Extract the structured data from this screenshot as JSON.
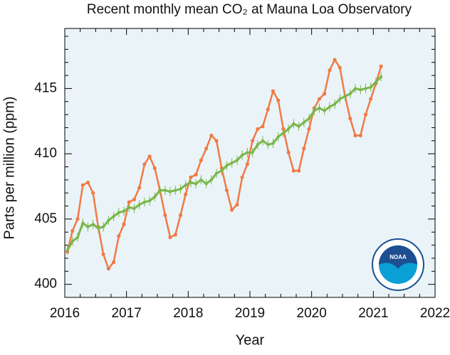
{
  "chart_data": {
    "type": "line",
    "title": "Recent monthly mean CO₂ at Mauna Loa Observatory",
    "xlabel": "Year",
    "ylabel": "Parts per million (ppm)",
    "logo_text": "NOAA",
    "background": "#eaf4f8",
    "xlim": [
      2016,
      2022
    ],
    "xticks": [
      2016,
      2017,
      2018,
      2019,
      2020,
      2021,
      2022
    ],
    "xminorticks": [
      2016.25,
      2016.5,
      2016.75,
      2017.25,
      2017.5,
      2017.75,
      2018.25,
      2018.5,
      2018.75,
      2019.25,
      2019.5,
      2019.75,
      2020.25,
      2020.5,
      2020.75,
      2021.25,
      2021.5,
      2021.75
    ],
    "ylim": [
      399,
      419.6
    ],
    "yticks": [
      400,
      405,
      410,
      415
    ],
    "yminorticks": [
      401,
      402,
      403,
      404,
      406,
      407,
      408,
      409,
      411,
      412,
      413,
      414,
      416,
      417,
      418,
      419
    ],
    "x": [
      2016.042,
      2016.125,
      2016.208,
      2016.292,
      2016.375,
      2016.458,
      2016.542,
      2016.625,
      2016.708,
      2016.792,
      2016.875,
      2016.958,
      2017.042,
      2017.125,
      2017.208,
      2017.292,
      2017.375,
      2017.458,
      2017.542,
      2017.625,
      2017.708,
      2017.792,
      2017.875,
      2017.958,
      2018.042,
      2018.125,
      2018.208,
      2018.292,
      2018.375,
      2018.458,
      2018.542,
      2018.625,
      2018.708,
      2018.792,
      2018.875,
      2018.958,
      2019.042,
      2019.125,
      2019.208,
      2019.292,
      2019.375,
      2019.458,
      2019.542,
      2019.625,
      2019.708,
      2019.792,
      2019.875,
      2019.958,
      2020.042,
      2020.125,
      2020.208,
      2020.292,
      2020.375,
      2020.458,
      2020.542,
      2020.625,
      2020.708,
      2020.792,
      2020.875,
      2020.958,
      2021.042,
      2021.125
    ],
    "series": [
      {
        "color": "#f07a45",
        "values": [
          402.5,
          404.1,
          405.0,
          407.6,
          407.8,
          407.0,
          404.4,
          402.3,
          401.2,
          401.7,
          403.7,
          404.6,
          406.3,
          406.5,
          407.4,
          409.2,
          409.8,
          408.9,
          407.2,
          405.3,
          403.6,
          403.8,
          405.3,
          406.9,
          408.2,
          408.4,
          409.5,
          410.4,
          411.4,
          411.0,
          408.9,
          407.2,
          405.7,
          406.1,
          408.2,
          409.2,
          411.0,
          411.9,
          412.1,
          413.4,
          414.8,
          414.1,
          411.9,
          410.1,
          408.7,
          408.7,
          410.4,
          411.9,
          413.5,
          414.2,
          414.6,
          416.4,
          417.2,
          416.6,
          414.4,
          412.7,
          411.4,
          411.4,
          413.0,
          414.2,
          415.4,
          416.7
        ]
      },
      {
        "color": "#7ab648",
        "error": 0.35,
        "values": [
          402.6,
          403.3,
          403.6,
          404.7,
          404.4,
          404.6,
          404.3,
          404.4,
          404.9,
          405.2,
          405.5,
          405.6,
          405.9,
          405.8,
          406.1,
          406.3,
          406.4,
          406.7,
          407.2,
          407.2,
          407.1,
          407.2,
          407.3,
          407.6,
          407.8,
          407.7,
          408.0,
          407.7,
          408.0,
          408.5,
          408.7,
          409.1,
          409.3,
          409.5,
          409.9,
          410.1,
          410.1,
          410.7,
          411.0,
          410.7,
          410.8,
          411.3,
          411.6,
          411.9,
          412.3,
          412.1,
          412.4,
          412.7,
          413.3,
          413.5,
          413.3,
          413.6,
          413.8,
          414.2,
          414.4,
          414.6,
          415.0,
          414.9,
          415.0,
          415.1,
          415.5,
          415.9
        ]
      }
    ]
  }
}
